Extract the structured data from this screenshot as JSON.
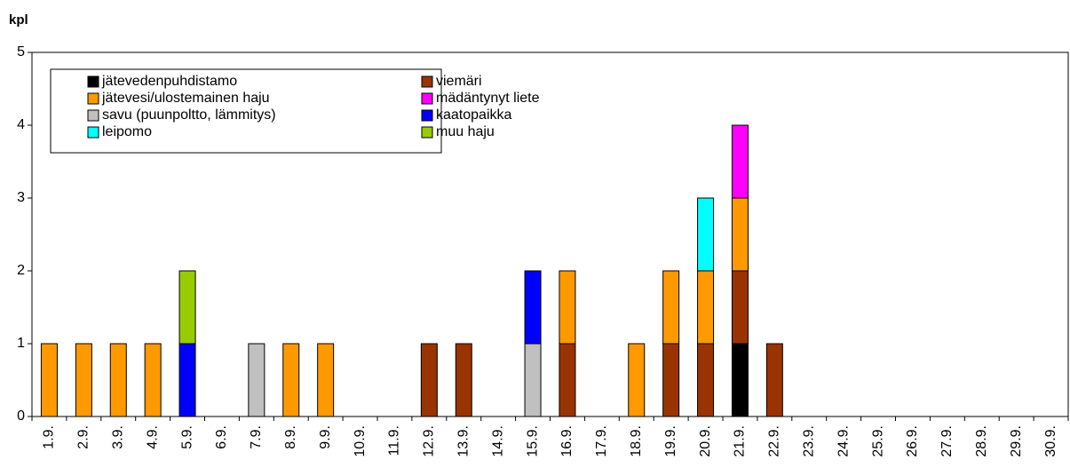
{
  "chart_data": {
    "type": "bar",
    "stacked": true,
    "y_label": "kpl",
    "categories": [
      "1.9.",
      "2.9.",
      "3.9.",
      "4.9.",
      "5.9.",
      "6.9.",
      "7.9.",
      "8.9.",
      "9.9.",
      "10.9.",
      "11.9.",
      "12.9.",
      "13.9.",
      "14.9.",
      "15.9.",
      "16.9.",
      "17.9.",
      "18.9.",
      "19.9.",
      "20.9.",
      "21.9.",
      "22.9.",
      "23.9.",
      "24.9.",
      "25.9.",
      "26.9.",
      "27.9.",
      "28.9.",
      "29.9.",
      "30.9."
    ],
    "series": [
      {
        "name": "jätevedenpuhdistamo",
        "color": "#000000",
        "values": [
          0,
          0,
          0,
          0,
          0,
          0,
          0,
          0,
          0,
          0,
          0,
          0,
          0,
          0,
          0,
          0,
          0,
          0,
          0,
          0,
          1,
          0,
          0,
          0,
          0,
          0,
          0,
          0,
          0,
          0
        ]
      },
      {
        "name": "viemäri",
        "color": "#993300",
        "values": [
          0,
          0,
          0,
          0,
          0,
          0,
          0,
          0,
          0,
          0,
          0,
          1,
          1,
          0,
          0,
          1,
          0,
          0,
          1,
          1,
          1,
          1,
          0,
          0,
          0,
          0,
          0,
          0,
          0,
          0
        ]
      },
      {
        "name": "jätevesi/ulostemainen haju",
        "color": "#FF9900",
        "values": [
          1,
          1,
          1,
          1,
          0,
          0,
          0,
          1,
          1,
          0,
          0,
          0,
          0,
          0,
          0,
          1,
          0,
          1,
          1,
          1,
          1,
          0,
          0,
          0,
          0,
          0,
          0,
          0,
          0,
          0
        ]
      },
      {
        "name": "mädäntynyt liete",
        "color": "#FF00FF",
        "values": [
          0,
          0,
          0,
          0,
          0,
          0,
          0,
          0,
          0,
          0,
          0,
          0,
          0,
          0,
          0,
          0,
          0,
          0,
          0,
          0,
          1,
          0,
          0,
          0,
          0,
          0,
          0,
          0,
          0,
          0
        ]
      },
      {
        "name": "savu (puunpoltto, lämmitys)",
        "color": "#C0C0C0",
        "values": [
          0,
          0,
          0,
          0,
          0,
          0,
          1,
          0,
          0,
          0,
          0,
          0,
          0,
          0,
          1,
          0,
          0,
          0,
          0,
          0,
          0,
          0,
          0,
          0,
          0,
          0,
          0,
          0,
          0,
          0
        ]
      },
      {
        "name": "kaatopaikka",
        "color": "#0000FF",
        "values": [
          0,
          0,
          0,
          0,
          1,
          0,
          0,
          0,
          0,
          0,
          0,
          0,
          0,
          0,
          1,
          0,
          0,
          0,
          0,
          0,
          0,
          0,
          0,
          0,
          0,
          0,
          0,
          0,
          0,
          0
        ]
      },
      {
        "name": "leipomo",
        "color": "#00FFFF",
        "values": [
          0,
          0,
          0,
          0,
          0,
          0,
          0,
          0,
          0,
          0,
          0,
          0,
          0,
          0,
          0,
          0,
          0,
          0,
          0,
          1,
          0,
          0,
          0,
          0,
          0,
          0,
          0,
          0,
          0,
          0
        ]
      },
      {
        "name": "muu haju",
        "color": "#99CC00",
        "values": [
          0,
          0,
          0,
          0,
          1,
          0,
          0,
          0,
          0,
          0,
          0,
          0,
          0,
          0,
          0,
          0,
          0,
          0,
          0,
          0,
          0,
          0,
          0,
          0,
          0,
          0,
          0,
          0,
          0,
          0
        ]
      }
    ],
    "ylim": [
      0,
      5
    ],
    "yticks": [
      0,
      1,
      2,
      3,
      4,
      5
    ],
    "legend": "top-left"
  }
}
